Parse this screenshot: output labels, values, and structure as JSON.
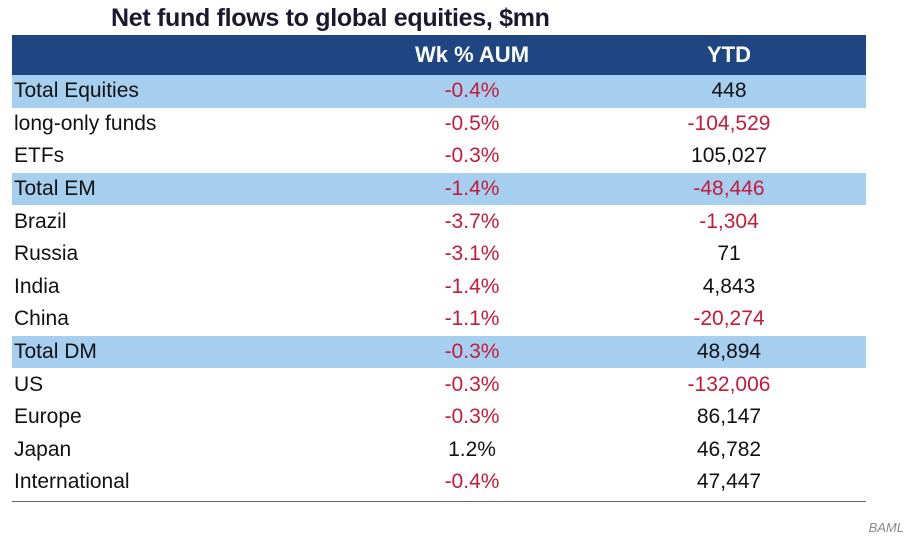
{
  "chart_data": {
    "type": "table",
    "title": "Net fund flows to global equities, $mn",
    "columns": [
      "",
      "Wk % AUM",
      "YTD"
    ],
    "rows": [
      {
        "label": "Total Equities",
        "total": true,
        "wk": "-0.4%",
        "wk_value": -0.4,
        "ytd": "448",
        "ytd_value": 448
      },
      {
        "label": "long-only funds",
        "total": false,
        "wk": "-0.5%",
        "wk_value": -0.5,
        "ytd": "-104,529",
        "ytd_value": -104529
      },
      {
        "label": "ETFs",
        "total": false,
        "wk": "-0.3%",
        "wk_value": -0.3,
        "ytd": "105,027",
        "ytd_value": 105027
      },
      {
        "label": "Total EM",
        "total": true,
        "wk": "-1.4%",
        "wk_value": -1.4,
        "ytd": "-48,446",
        "ytd_value": -48446
      },
      {
        "label": "Brazil",
        "total": false,
        "wk": "-3.7%",
        "wk_value": -3.7,
        "ytd": "-1,304",
        "ytd_value": -1304
      },
      {
        "label": "Russia",
        "total": false,
        "wk": "-3.1%",
        "wk_value": -3.1,
        "ytd": "71",
        "ytd_value": 71
      },
      {
        "label": "India",
        "total": false,
        "wk": "-1.4%",
        "wk_value": -1.4,
        "ytd": "4,843",
        "ytd_value": 4843
      },
      {
        "label": "China",
        "total": false,
        "wk": "-1.1%",
        "wk_value": -1.1,
        "ytd": "-20,274",
        "ytd_value": -20274
      },
      {
        "label": "Total DM",
        "total": true,
        "wk": "-0.3%",
        "wk_value": -0.3,
        "ytd": "48,894",
        "ytd_value": 48894
      },
      {
        "label": "US",
        "total": false,
        "wk": "-0.3%",
        "wk_value": -0.3,
        "ytd": "-132,006",
        "ytd_value": -132006
      },
      {
        "label": "Europe",
        "total": false,
        "wk": "-0.3%",
        "wk_value": -0.3,
        "ytd": "86,147",
        "ytd_value": 86147
      },
      {
        "label": "Japan",
        "total": false,
        "wk": "1.2%",
        "wk_value": 1.2,
        "ytd": "46,782",
        "ytd_value": 46782
      },
      {
        "label": "International",
        "total": false,
        "wk": "-0.4%",
        "wk_value": -0.4,
        "ytd": "47,447",
        "ytd_value": 47447
      }
    ],
    "source": "BAML",
    "colors": {
      "header_bg": "#1f4682",
      "total_bg": "#a6cfef",
      "negative": "#c41a3b"
    }
  }
}
